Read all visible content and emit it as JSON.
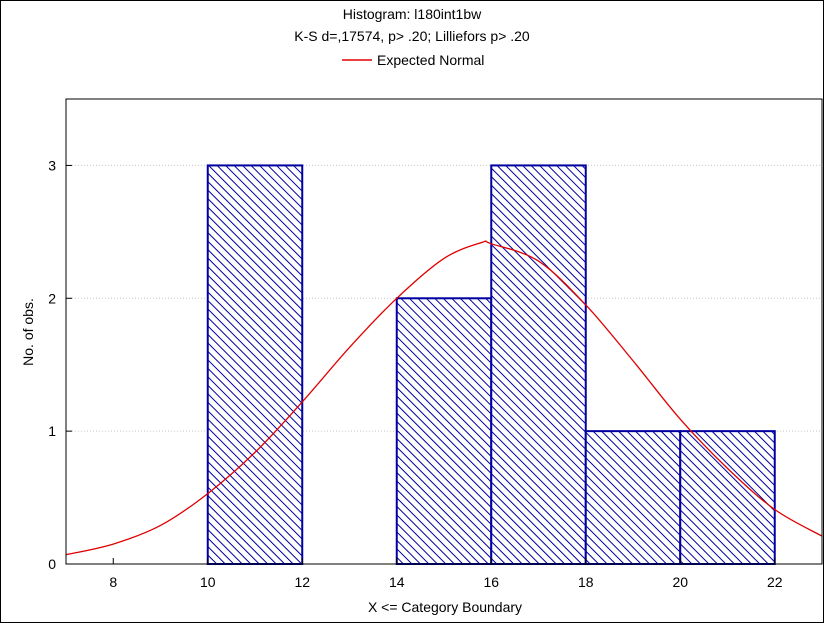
{
  "chart_data": {
    "type": "bar",
    "title": "Histogram: l180int1bw",
    "subtitle": "K-S d=,17574, p> .20; Lilliefors p> .20",
    "legend": {
      "entries": [
        "Expected Normal"
      ],
      "placement": "top-center"
    },
    "xlabel": "X <= Category Boundary",
    "ylabel": "No. of obs.",
    "xlim": [
      7,
      23
    ],
    "ylim": [
      0,
      3.5
    ],
    "x_ticks": [
      8,
      10,
      12,
      14,
      16,
      18,
      20,
      22
    ],
    "y_ticks": [
      0,
      1,
      2,
      3
    ],
    "grid": true,
    "bins": [
      {
        "from": 10,
        "to": 12,
        "count": 3
      },
      {
        "from": 12,
        "to": 14,
        "count": 0
      },
      {
        "from": 14,
        "to": 16,
        "count": 2
      },
      {
        "from": 16,
        "to": 18,
        "count": 3
      },
      {
        "from": 18,
        "to": 20,
        "count": 1
      },
      {
        "from": 20,
        "to": 22,
        "count": 1
      }
    ],
    "expected_normal": {
      "x": [
        7,
        8,
        9,
        10,
        11,
        12,
        13,
        14,
        15,
        15.8,
        16,
        17,
        18,
        19,
        20,
        21,
        22,
        23
      ],
      "y": [
        0.07,
        0.15,
        0.29,
        0.53,
        0.84,
        1.22,
        1.63,
        2.0,
        2.3,
        2.42,
        2.41,
        2.28,
        1.95,
        1.53,
        1.09,
        0.72,
        0.41,
        0.21
      ]
    },
    "colors": {
      "bar_stroke": "#0000a0",
      "bar_hatch": "#0000a0",
      "curve": "#e00000",
      "grid": "#c8c8c8"
    }
  }
}
